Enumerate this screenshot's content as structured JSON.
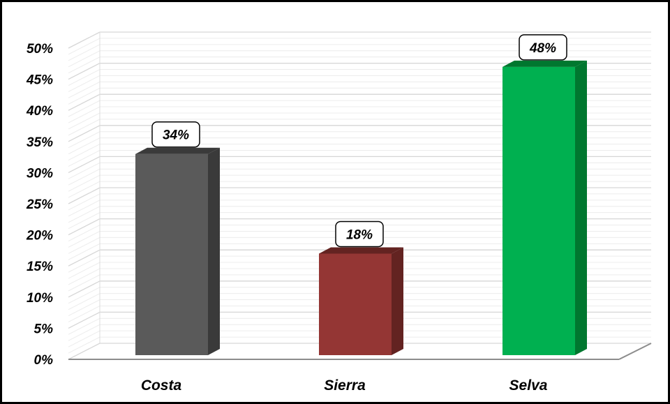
{
  "chart_data": {
    "type": "bar",
    "categories": [
      "Costa",
      "Sierra",
      "Selva"
    ],
    "values": [
      34,
      18,
      48
    ],
    "data_labels": [
      "34%",
      "18%",
      "48%"
    ],
    "colors": [
      "#5a5a5a",
      "#943634",
      "#00b050"
    ],
    "side_colors": [
      "#3a3a3a",
      "#632321",
      "#00772f"
    ],
    "y_ticks": [
      "0%",
      "5%",
      "10%",
      "15%",
      "20%",
      "25%",
      "30%",
      "35%",
      "40%",
      "45%",
      "50%"
    ],
    "ylim": [
      0,
      50
    ],
    "y_major_step": 5,
    "y_minor_step": 1,
    "title": "",
    "xlabel": "",
    "ylabel": "",
    "grid": true,
    "legend": "none",
    "style": "3d-column"
  }
}
